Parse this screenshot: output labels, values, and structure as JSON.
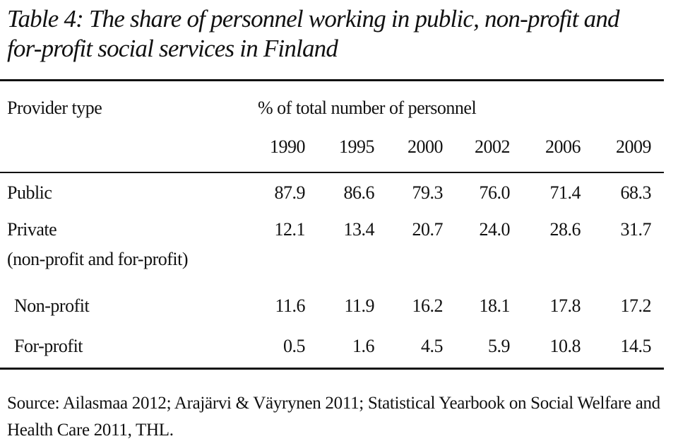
{
  "title": "Table 4: The share of personnel working in public, non-profit and for-profit social services in Finland",
  "table": {
    "header": {
      "label": "Provider type",
      "group": "% of total number of personnel"
    },
    "years": [
      "1990",
      "1995",
      "2000",
      "2002",
      "2006",
      "2009"
    ],
    "rows": [
      {
        "label": "Public",
        "values": [
          "87.9",
          "86.6",
          "79.3",
          "76.0",
          "71.4",
          "68.3"
        ]
      },
      {
        "label": "Private",
        "note": "(non-profit and for-profit)",
        "values": [
          "12.1",
          "13.4",
          "20.7",
          "24.0",
          "28.6",
          "31.7"
        ]
      },
      {
        "label": "Non-profit",
        "values": [
          "11.6",
          "11.9",
          "16.2",
          "18.1",
          "17.8",
          "17.2"
        ]
      },
      {
        "label": "For-profit",
        "values": [
          "0.5",
          "1.6",
          "4.5",
          "5.9",
          "10.8",
          "14.5"
        ]
      }
    ]
  },
  "source": "Source: Ailasmaa 2012; Arajärvi & Väyrynen 2011; Statistical Yearbook on Social Welfare and Health Care 2011, THL."
}
